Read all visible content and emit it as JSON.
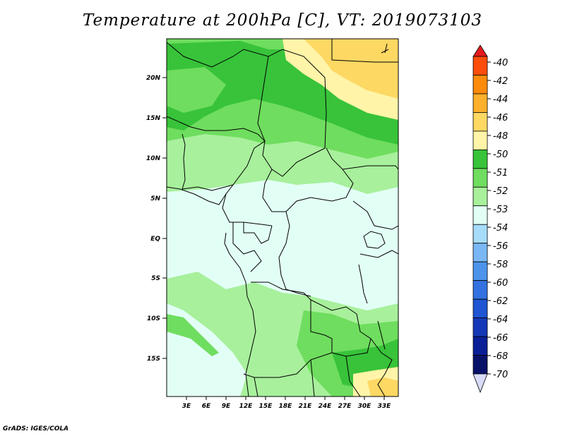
{
  "title": "Temperature at 200hPa [C], VT: 2019073103",
  "footer": "GrADS: IGES/COLA",
  "lat_labels": [
    "20N",
    "15N",
    "10N",
    "5N",
    "EQ",
    "5S",
    "10S",
    "15S"
  ],
  "lon_labels": [
    "3E",
    "6E",
    "9E",
    "12E",
    "15E",
    "18E",
    "21E",
    "24E",
    "27E",
    "30E",
    "33E"
  ],
  "colorbar": {
    "labels": [
      "-40",
      "-42",
      "-44",
      "-46",
      "-48",
      "-50",
      "-51",
      "-52",
      "-53",
      "-54",
      "-56",
      "-58",
      "-60",
      "-62",
      "-64",
      "-66",
      "-68",
      "-70"
    ],
    "colors": [
      "#e31a1c",
      "#fd4d0c",
      "#fe8b0c",
      "#fdb02b",
      "#fdd863",
      "#fff4a8",
      "#38c33a",
      "#6fdd5f",
      "#a8f09c",
      "#e2fff6",
      "#a6dcfa",
      "#79b8f5",
      "#4d94ec",
      "#3372e0",
      "#1f55d2",
      "#1538b8",
      "#0a1f96",
      "#081168"
    ],
    "top_arrow_color": "#e31a1c",
    "bottom_arrow_color": "#d8dcf8"
  },
  "fill_colors": {
    "pale_cyan": "#e2fff6",
    "light_green": "#a8f09c",
    "mid_green": "#6fdd5f",
    "green": "#38c33a",
    "pale_yellow": "#fff4a8",
    "yellow": "#fdd863"
  }
}
